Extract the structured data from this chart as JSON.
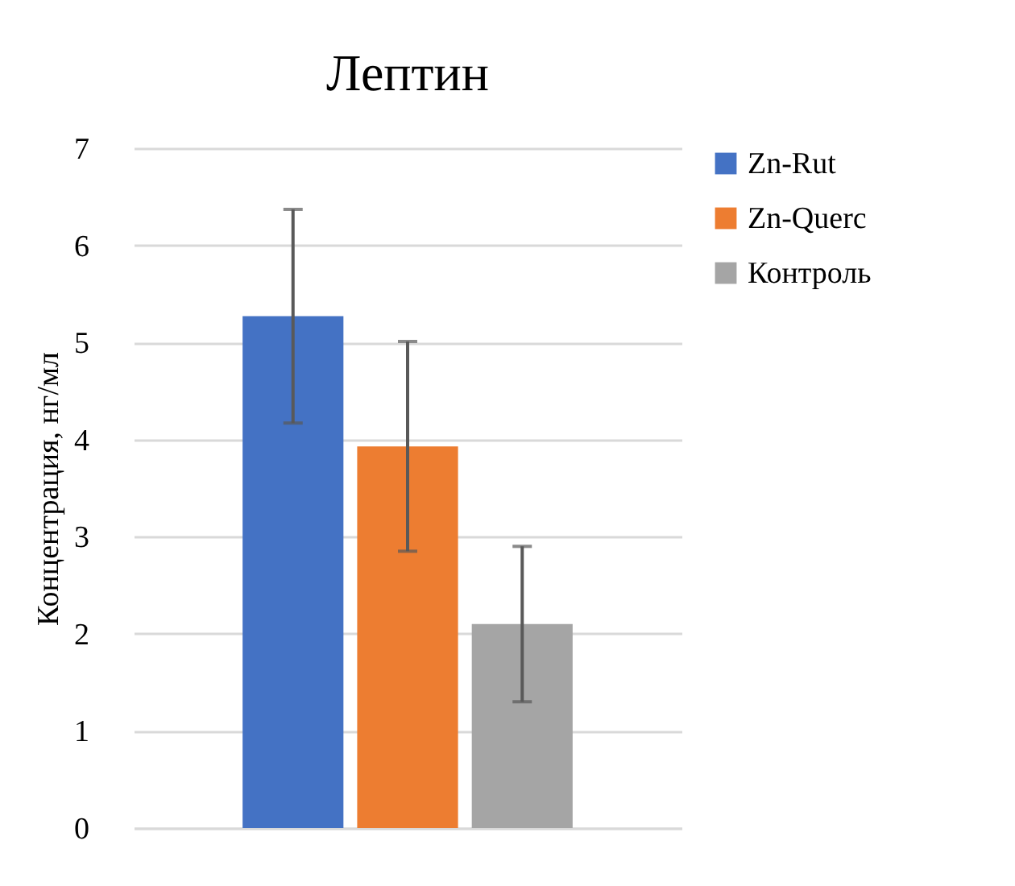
{
  "chart_data": {
    "type": "bar",
    "title": "Лептин",
    "ylabel": "Концентрация, нг/мл",
    "categories": [
      null
    ],
    "series": [
      {
        "name": "Zn-Rut",
        "color": "#4472c4",
        "values": [
          5.27
        ],
        "errors": [
          1.1
        ]
      },
      {
        "name": "Zn-Querc",
        "color": "#ed7d31",
        "values": [
          3.93
        ],
        "errors": [
          1.08
        ]
      },
      {
        "name": "Контроль",
        "color": "#a5a5a5",
        "values": [
          2.1
        ],
        "errors": [
          0.8
        ]
      }
    ],
    "ylim": [
      0,
      7
    ],
    "yticks": [
      0,
      1,
      2,
      3,
      4,
      5,
      6,
      7
    ],
    "grid": "y",
    "legend": "right"
  }
}
